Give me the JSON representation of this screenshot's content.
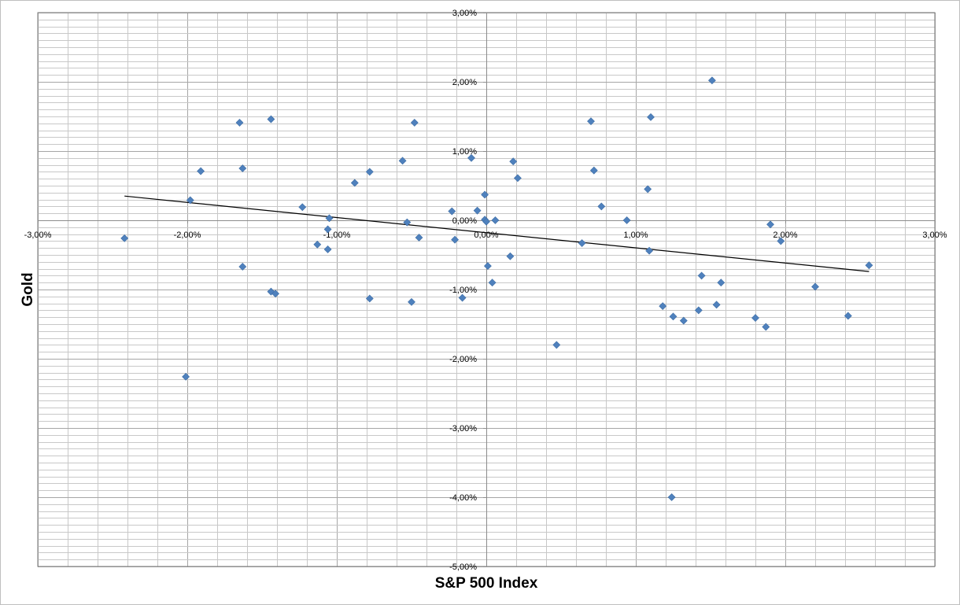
{
  "chart_data": {
    "type": "scatter",
    "xlabel": "S&P 500 Index",
    "ylabel": "Gold",
    "xlim": [
      -3,
      3
    ],
    "ylim": [
      -5,
      3
    ],
    "x_ticks": [
      -3,
      -2,
      -1,
      0,
      1,
      2,
      3
    ],
    "x_tick_labels": [
      "-3,00%",
      "-2,00%",
      "-1,00%",
      "0,00%",
      "1,00%",
      "2,00%",
      "3,00%"
    ],
    "y_ticks": [
      3,
      2,
      1,
      0,
      -1,
      -2,
      -3,
      -4,
      -5
    ],
    "y_tick_labels": [
      "3,00%",
      "2,00%",
      "1,00%",
      "0,00%",
      "-1,00%",
      "-2,00%",
      "-3,00%",
      "-4,00%",
      "-5,00%"
    ],
    "grid": true,
    "marker_color": "#4f81bd",
    "trendline_color": "#000000",
    "grid_color": "#a6a6a6",
    "trendline": {
      "x": [
        -2.42,
        2.56
      ],
      "y": [
        0.35,
        -0.74
      ]
    },
    "series": [
      {
        "points": [
          [
            -2.42,
            -0.26
          ],
          [
            -2.01,
            -2.26
          ],
          [
            -1.98,
            0.29
          ],
          [
            -1.91,
            0.71
          ],
          [
            -1.65,
            1.41
          ],
          [
            -1.63,
            0.75
          ],
          [
            -1.63,
            -0.67
          ],
          [
            -1.44,
            1.46
          ],
          [
            -1.44,
            -1.03
          ],
          [
            -1.41,
            -1.06
          ],
          [
            -1.23,
            0.19
          ],
          [
            -1.13,
            -0.35
          ],
          [
            -1.06,
            -0.13
          ],
          [
            -1.06,
            -0.42
          ],
          [
            -1.05,
            0.03
          ],
          [
            -0.88,
            0.54
          ],
          [
            -0.78,
            0.7
          ],
          [
            -0.78,
            -1.13
          ],
          [
            -0.56,
            0.86
          ],
          [
            -0.53,
            -0.03
          ],
          [
            -0.5,
            -1.18
          ],
          [
            -0.48,
            1.41
          ],
          [
            -0.45,
            -0.25
          ],
          [
            -0.23,
            0.13
          ],
          [
            -0.21,
            -0.28
          ],
          [
            -0.16,
            -1.12
          ],
          [
            -0.1,
            0.9
          ],
          [
            -0.06,
            0.14
          ],
          [
            -0.01,
            0.37
          ],
          [
            -0.01,
            0.01
          ],
          [
            0.0,
            -0.02
          ],
          [
            0.01,
            -0.66
          ],
          [
            0.04,
            -0.9
          ],
          [
            0.06,
            0.0
          ],
          [
            0.16,
            -0.52
          ],
          [
            0.18,
            0.85
          ],
          [
            0.21,
            0.61
          ],
          [
            0.47,
            -1.8
          ],
          [
            0.64,
            -0.33
          ],
          [
            0.7,
            1.43
          ],
          [
            0.72,
            0.72
          ],
          [
            0.77,
            0.2
          ],
          [
            0.94,
            0.0
          ],
          [
            1.08,
            0.45
          ],
          [
            1.09,
            -0.44
          ],
          [
            1.1,
            1.49
          ],
          [
            1.18,
            -1.24
          ],
          [
            1.24,
            -4.0
          ],
          [
            1.25,
            -1.39
          ],
          [
            1.32,
            -1.45
          ],
          [
            1.42,
            -1.3
          ],
          [
            1.44,
            -0.8
          ],
          [
            1.51,
            2.02
          ],
          [
            1.54,
            -1.22
          ],
          [
            1.57,
            -0.9
          ],
          [
            1.8,
            -1.41
          ],
          [
            1.87,
            -1.54
          ],
          [
            1.9,
            -0.06
          ],
          [
            1.97,
            -0.3
          ],
          [
            2.2,
            -0.96
          ],
          [
            2.42,
            -1.38
          ],
          [
            2.56,
            -0.65
          ]
        ]
      }
    ]
  }
}
